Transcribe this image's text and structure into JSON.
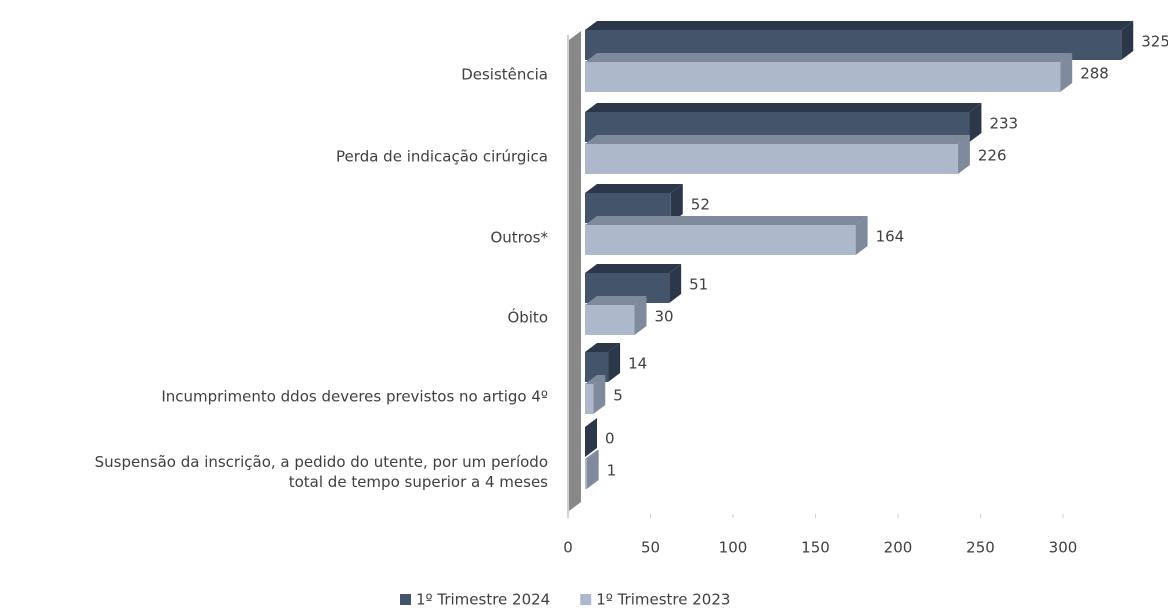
{
  "chart_data": {
    "type": "hbar3d",
    "categories": [
      "Desistência",
      "Perda de indicação cirúrgica",
      "Outros*",
      "Óbito",
      "Incumprimento ddos deveres previstos no artigo 4º",
      "Suspensão da inscrição, a pedido do utente, por um período\ntotal de tempo superior a 4 meses"
    ],
    "series": [
      {
        "name": "1º Trimestre 2024",
        "color": "#44546a",
        "shade": "#2c3849",
        "values": [
          325,
          233,
          52,
          51,
          14,
          0
        ]
      },
      {
        "name": "1º Trimestre 2023",
        "color": "#adb9ca",
        "shade": "#7f8b9c",
        "values": [
          288,
          226,
          164,
          30,
          5,
          1
        ]
      }
    ],
    "xlim": [
      0,
      300
    ],
    "xticks": [
      0,
      50,
      100,
      150,
      200,
      250,
      300
    ],
    "legend": "bottom"
  }
}
